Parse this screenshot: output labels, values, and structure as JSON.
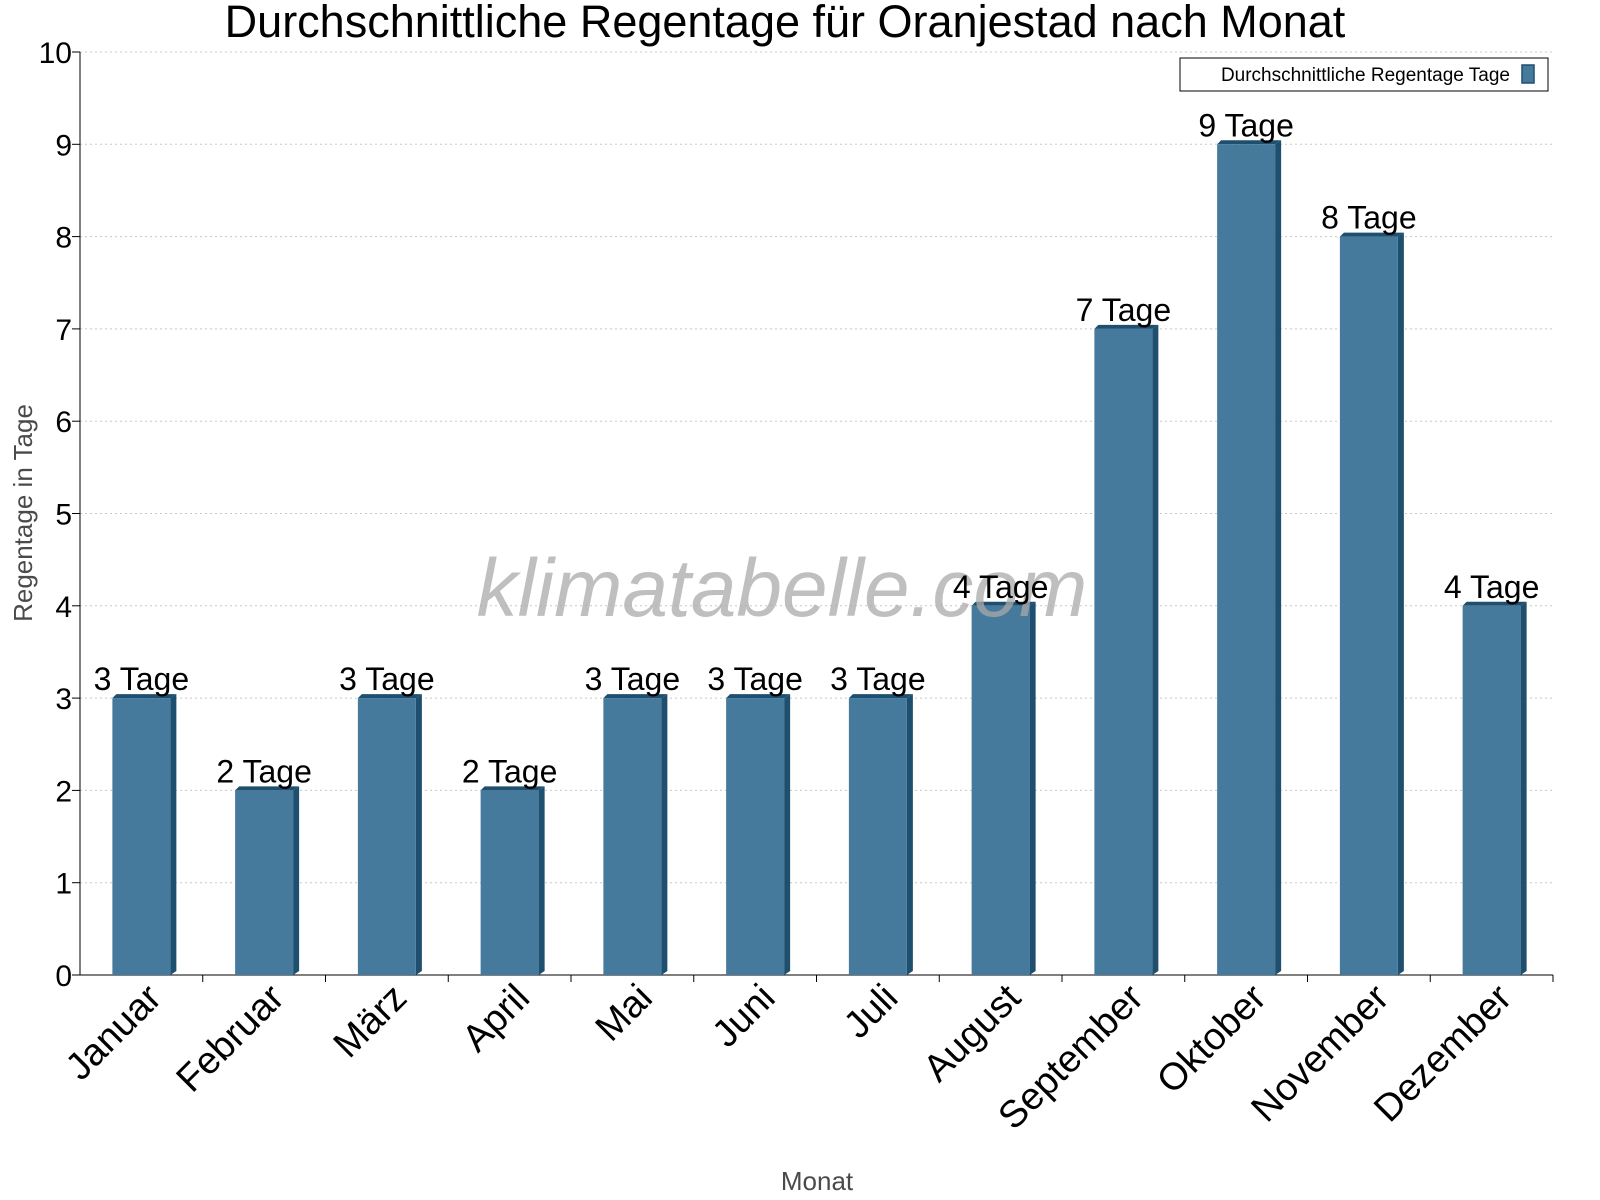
{
  "watermark": "klimatabelle.com",
  "chart_data": {
    "type": "bar",
    "title": "Durchschnittliche Regentage für Oranjestad nach Monat",
    "xlabel": "Monat",
    "ylabel": "Regentage in Tage",
    "categories": [
      "Januar",
      "Februar",
      "März",
      "April",
      "Mai",
      "Juni",
      "Juli",
      "August",
      "September",
      "Oktober",
      "November",
      "Dezember"
    ],
    "series": [
      {
        "name": "Durchschnittliche Regentage Tage",
        "values": [
          3,
          2,
          3,
          2,
          3,
          3,
          3,
          4,
          7,
          9,
          8,
          4
        ],
        "data_labels": [
          "3 Tage",
          "2 Tage",
          "3 Tage",
          "2 Tage",
          "3 Tage",
          "3 Tage",
          "3 Tage",
          "4 Tage",
          "7 Tage",
          "9 Tage",
          "8 Tage",
          "4 Tage"
        ]
      }
    ],
    "yticks": [
      "0",
      "1",
      "2",
      "3",
      "4",
      "5",
      "6",
      "7",
      "8",
      "9",
      "10"
    ],
    "ylim": [
      0,
      10
    ],
    "grid": true,
    "legend_position": "top-right",
    "colors": {
      "bar": "#467a9c",
      "bar_side": "#1e4f6e",
      "grid": "#c8c8c8"
    }
  }
}
